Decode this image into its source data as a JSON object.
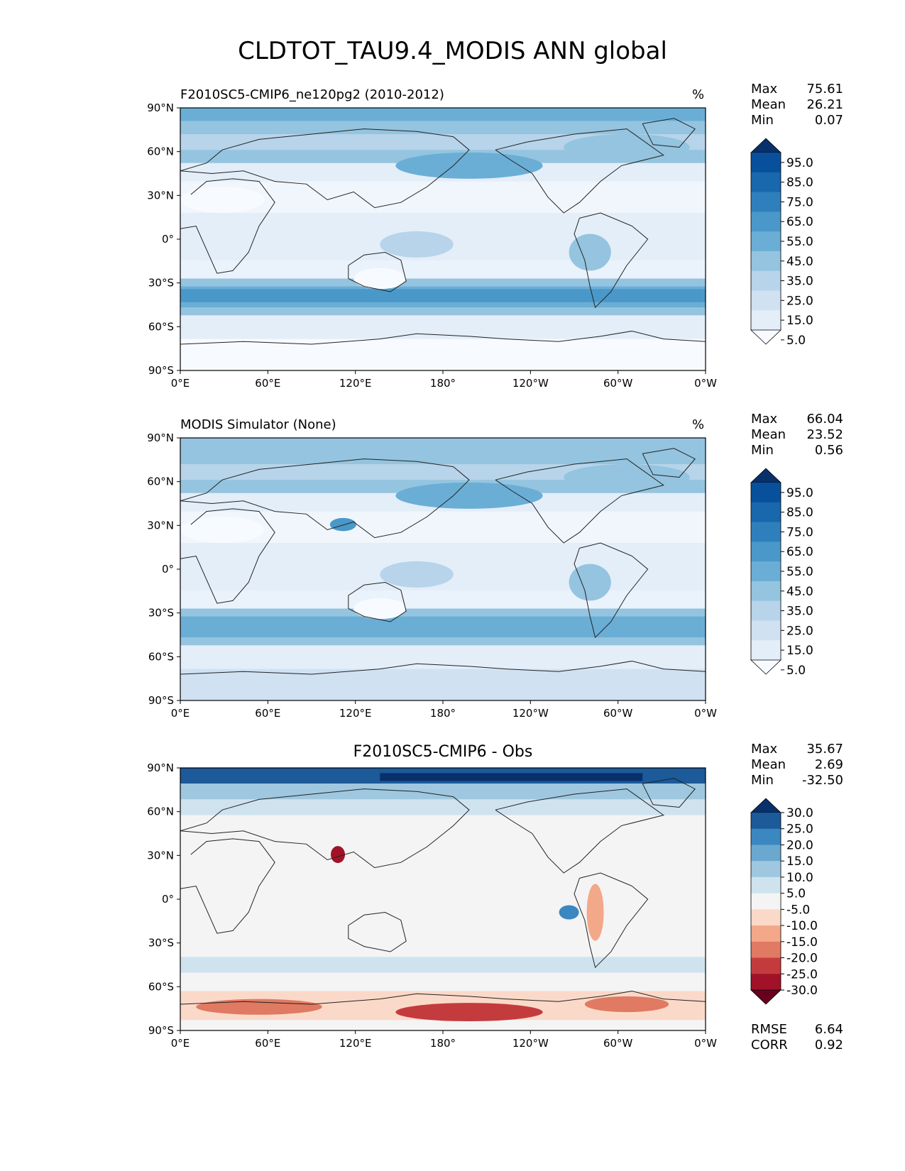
{
  "figure_title": "CLDTOT_TAU9.4_MODIS ANN global",
  "lat_labels": [
    "90°N",
    "60°N",
    "30°N",
    "0°",
    "30°S",
    "60°S",
    "90°S"
  ],
  "lon_labels": [
    "0°E",
    "60°E",
    "120°E",
    "180°",
    "120°W",
    "60°W",
    "0°W"
  ],
  "panels": [
    {
      "title": "F2010SC5-CMIP6_ne120pg2 (2010-2012)",
      "title_align": "left",
      "unit": "%",
      "stats": {
        "max_label": "Max",
        "max": "75.61",
        "mean_label": "Mean",
        "mean": "26.21",
        "min_label": "Min",
        "min": "0.07"
      },
      "colorbar": {
        "ticks": [
          "95.0",
          "85.0",
          "75.0",
          "65.0",
          "55.0",
          "45.0",
          "35.0",
          "25.0",
          "15.0",
          "5.0"
        ],
        "colors": [
          "#08306b",
          "#08509b",
          "#1967ad",
          "#2f7fbc",
          "#4a98c9",
          "#6aaed6",
          "#94c4df",
          "#b7d4ea",
          "#d0e1f2",
          "#e3eef9",
          "#f7fbff"
        ]
      }
    },
    {
      "title": "MODIS Simulator (None)",
      "title_align": "left",
      "unit": "%",
      "stats": {
        "max_label": "Max",
        "max": "66.04",
        "mean_label": "Mean",
        "mean": "23.52",
        "min_label": "Min",
        "min": "0.56"
      },
      "colorbar": {
        "ticks": [
          "95.0",
          "85.0",
          "75.0",
          "65.0",
          "55.0",
          "45.0",
          "35.0",
          "25.0",
          "15.0",
          "5.0"
        ],
        "colors": [
          "#08306b",
          "#08509b",
          "#1967ad",
          "#2f7fbc",
          "#4a98c9",
          "#6aaed6",
          "#94c4df",
          "#b7d4ea",
          "#d0e1f2",
          "#e3eef9",
          "#f7fbff"
        ]
      }
    },
    {
      "title": "F2010SC5-CMIP6 - Obs",
      "title_align": "center",
      "unit": "",
      "stats": {
        "max_label": "Max",
        "max": "35.67",
        "mean_label": "Mean",
        "mean": "2.69",
        "min_label": "Min",
        "min": "-32.50"
      },
      "extra": {
        "rmse_label": "RMSE",
        "rmse": "6.64",
        "corr_label": "CORR",
        "corr": "0.92"
      },
      "colorbar": {
        "ticks": [
          "30.0",
          "25.0",
          "20.0",
          "15.0",
          "10.0",
          "5.0",
          "-5.0",
          "-10.0",
          "-15.0",
          "-20.0",
          "-25.0",
          "-30.0"
        ],
        "colors": [
          "#08306b",
          "#1c5a99",
          "#3b87c0",
          "#6aa8d0",
          "#9fc8e0",
          "#cfe3ef",
          "#f4f4f4",
          "#fbd9c8",
          "#f3a889",
          "#e07a62",
          "#c43b3e",
          "#a11228",
          "#67001f"
        ]
      }
    }
  ]
}
